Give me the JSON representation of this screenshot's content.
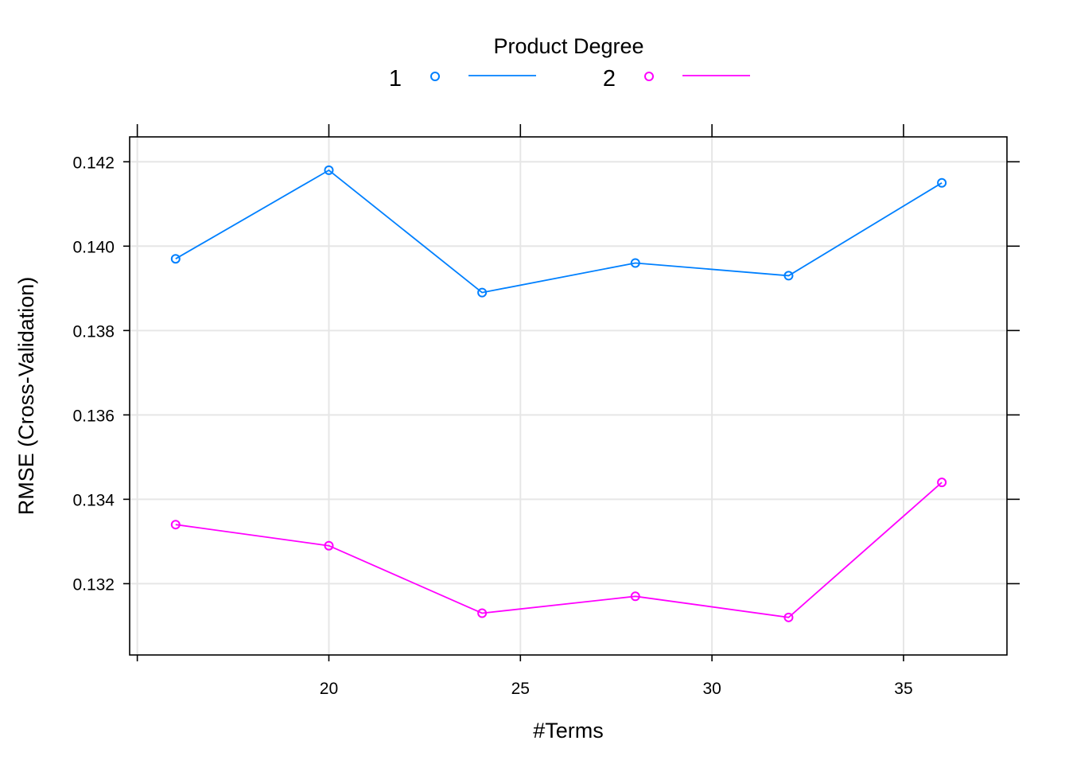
{
  "chart_data": {
    "type": "line",
    "xlabel": "#Terms",
    "ylabel": "RMSE (Cross-Validation)",
    "xlim": [
      14.8,
      37.7
    ],
    "ylim": [
      0.13031,
      0.14259
    ],
    "x_ticks": [
      15,
      20,
      25,
      30,
      35
    ],
    "x_tick_labels": [
      "",
      "20",
      "25",
      "30",
      "35"
    ],
    "y_ticks": [
      0.132,
      0.134,
      0.136,
      0.138,
      0.14,
      0.142
    ],
    "y_tick_labels": [
      "0.132",
      "0.134",
      "0.136",
      "0.138",
      "0.140",
      "0.142"
    ],
    "grid": true,
    "legend": {
      "title": "Product Degree",
      "placement": "top-center",
      "entries": [
        "1",
        "2"
      ]
    },
    "x": [
      16,
      20,
      24,
      28,
      32,
      36
    ],
    "series": [
      {
        "name": "1",
        "color": "#0080ff",
        "values": [
          0.1397,
          0.1418,
          0.1389,
          0.1396,
          0.1393,
          0.1415
        ]
      },
      {
        "name": "2",
        "color": "#ff00ff",
        "values": [
          0.1334,
          0.1329,
          0.1313,
          0.1317,
          0.1312,
          0.1344
        ]
      }
    ]
  }
}
